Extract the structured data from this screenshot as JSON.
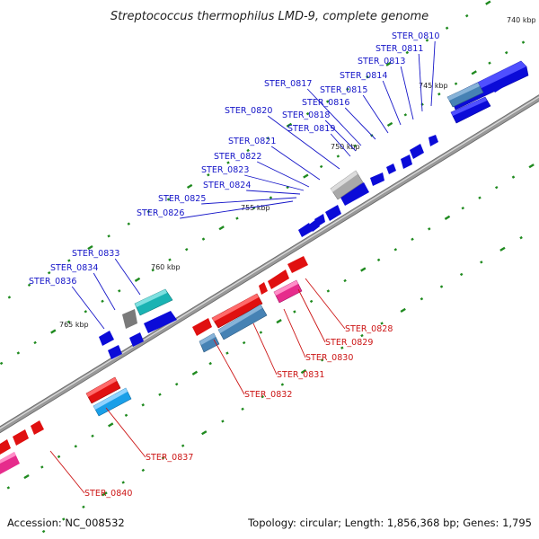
{
  "title": "Streptococcus thermophilus LMD-9, complete genome",
  "footer": {
    "accession": "Accession: NC_008532",
    "topology": "Topology: circular; Length: 1,856,368 bp; Genes: 1,795"
  },
  "colors": {
    "forward_label": "#1515c8",
    "reverse_label": "#cc1515",
    "backbone": "#8a8a8a",
    "tick": "#1f8a1f"
  },
  "ticks": [
    "740 kbp",
    "745 kbp",
    "750 kbp",
    "755 kbp",
    "760 kbp",
    "765 kbp"
  ],
  "forward_labels": [
    "STER_0810",
    "STER_0811",
    "STER_0813",
    "STER_0814",
    "STER_0815",
    "STER_0816",
    "STER_0817",
    "STER_0818",
    "STER_0819",
    "STER_0820",
    "STER_0821",
    "STER_0822",
    "STER_0823",
    "STER_0824",
    "STER_0825",
    "STER_0826",
    "STER_0833",
    "STER_0834",
    "STER_0836"
  ],
  "reverse_labels": [
    "STER_0828",
    "STER_0829",
    "STER_0830",
    "STER_0831",
    "STER_0832",
    "STER_0837",
    "STER_0840"
  ]
}
